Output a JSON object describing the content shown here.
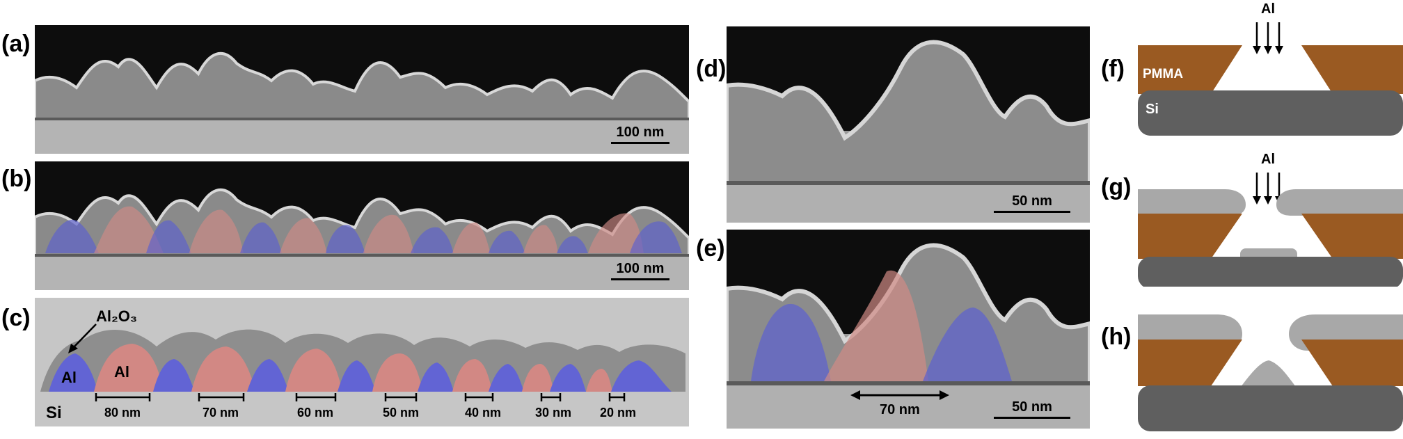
{
  "panels": {
    "a": "(a)",
    "b": "(b)",
    "c": "(c)",
    "d": "(d)",
    "e": "(e)",
    "f": "(f)",
    "g": "(g)",
    "h": "(h)"
  },
  "scale": {
    "a": "100 nm",
    "b": "100 nm",
    "d": "50 nm",
    "e": "50 nm",
    "e_gap": "70 nm"
  },
  "panel_c": {
    "oxide": "Al₂O₃",
    "al_left": "Al",
    "al_right": "Al",
    "substrate": "Si",
    "gaps": [
      "80 nm",
      "70 nm",
      "60 nm",
      "50 nm",
      "40 nm",
      "30 nm",
      "20 nm"
    ]
  },
  "schematic": {
    "al_source_f": "Al",
    "al_source_g": "Al",
    "resist": "PMMA",
    "substrate": "Si"
  },
  "colors": {
    "blue_overlay": "#5b5fd0",
    "red_overlay": "#d08a85",
    "pmma": "#9a5a22",
    "si_dark": "#5f5f5f",
    "al_gray": "#a8a8a8"
  }
}
